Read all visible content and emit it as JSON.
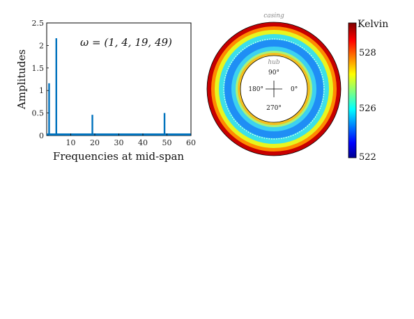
{
  "chart_data": [
    {
      "type": "bar",
      "title": "",
      "xlabel": "Frequencies at mid-span",
      "ylabel": "Amplitudes",
      "annotation": "ω = (1, 4, 19, 49)",
      "xlim": [
        0,
        60
      ],
      "ylim": [
        0,
        2.5
      ],
      "xticks": [
        10,
        20,
        30,
        40,
        50,
        60
      ],
      "yticks": [
        0,
        0.5,
        1,
        1.5,
        2,
        2.5
      ],
      "x": [
        1,
        4,
        19,
        49
      ],
      "values": [
        1.16,
        2.16,
        0.46,
        0.5
      ],
      "color": "#0072BD",
      "grid": false
    },
    {
      "type": "heatmap",
      "shape": "annulus",
      "outer_label": "casing",
      "inner_label": "hub",
      "angle_labels": [
        "90°",
        "180°",
        "0°",
        "270°"
      ],
      "colorbar_title": "Kelvin",
      "colorbar_ticks": [
        528,
        526,
        522
      ],
      "range": [
        522,
        530
      ],
      "colormap": "jet"
    }
  ]
}
